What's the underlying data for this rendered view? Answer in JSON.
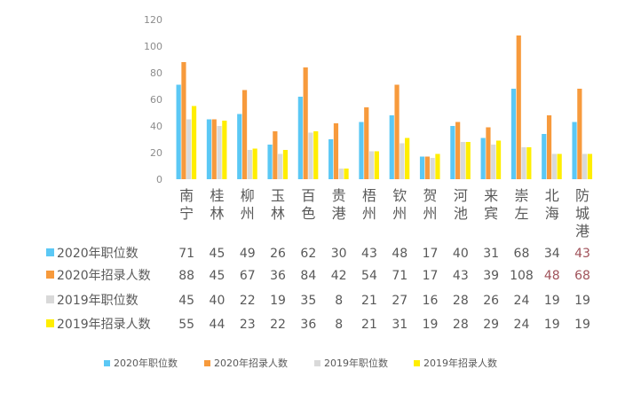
{
  "chart_data": {
    "type": "bar",
    "categories": [
      "南宁",
      "桂林",
      "柳州",
      "玉林",
      "百色",
      "贵港",
      "梧州",
      "钦州",
      "贺州",
      "河池",
      "来宾",
      "崇左",
      "北海",
      "防城港"
    ],
    "category_lines": [
      [
        "南",
        "宁"
      ],
      [
        "桂",
        "林"
      ],
      [
        "柳",
        "州"
      ],
      [
        "玉",
        "林"
      ],
      [
        "百",
        "色"
      ],
      [
        "贵",
        "港"
      ],
      [
        "梧",
        "州"
      ],
      [
        "钦",
        "州"
      ],
      [
        "贺",
        "州"
      ],
      [
        "河",
        "池"
      ],
      [
        "来",
        "宾"
      ],
      [
        "崇",
        "左"
      ],
      [
        "北",
        "海"
      ],
      [
        "防",
        "城",
        "港"
      ]
    ],
    "ylim": [
      0,
      120
    ],
    "yticks": [
      0,
      20,
      40,
      60,
      80,
      100,
      120
    ],
    "grid": false,
    "legend_position": "bottom",
    "series": [
      {
        "name": "2020年职位数",
        "color": "#5bc8f5",
        "values": [
          71,
          45,
          49,
          26,
          62,
          30,
          43,
          48,
          17,
          40,
          31,
          68,
          34,
          43
        ]
      },
      {
        "name": "2020年招录人数",
        "color": "#f79a3c",
        "values": [
          88,
          45,
          67,
          36,
          84,
          42,
          54,
          71,
          17,
          43,
          39,
          108,
          48,
          68
        ]
      },
      {
        "name": "2019年职位数",
        "color": "#d9d9d9",
        "values": [
          45,
          40,
          22,
          19,
          35,
          8,
          21,
          27,
          16,
          28,
          26,
          24,
          19,
          19
        ]
      },
      {
        "name": "2019年招录人数",
        "color": "#ffee00",
        "values": [
          55,
          44,
          23,
          22,
          36,
          8,
          21,
          31,
          19,
          28,
          29,
          24,
          19,
          19
        ]
      }
    ],
    "table_emphasis": [
      {
        "series": 0,
        "index": 13
      },
      {
        "series": 1,
        "index": 13
      },
      {
        "series": 1,
        "index": 12
      }
    ]
  }
}
